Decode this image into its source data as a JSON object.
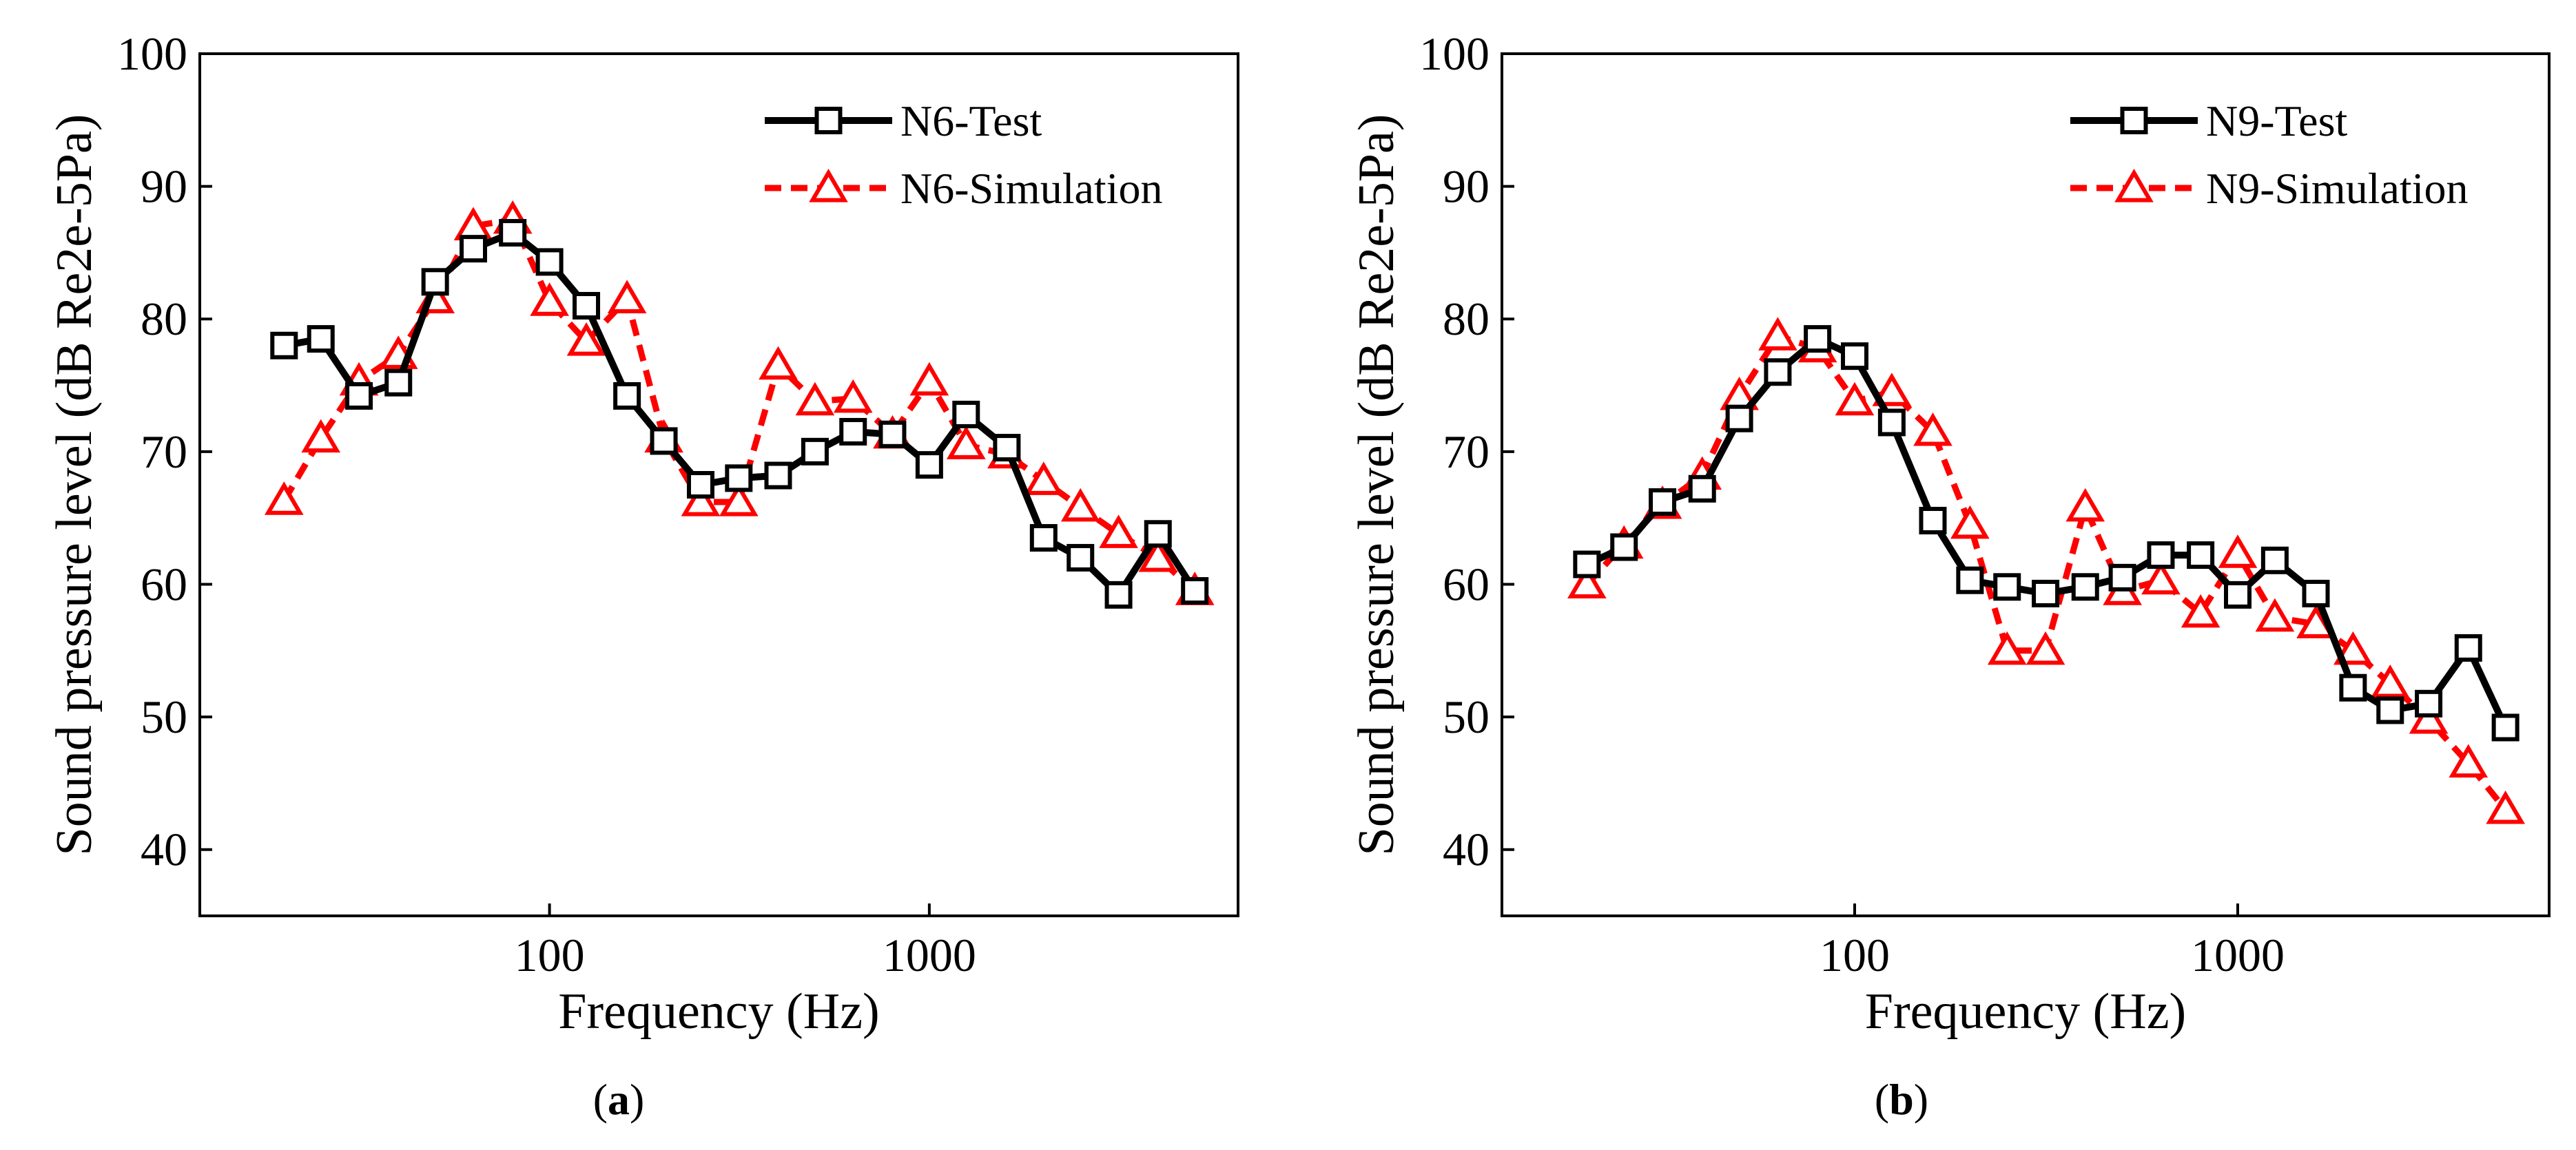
{
  "chart_data": [
    {
      "type": "line",
      "panel_label": "a",
      "xlabel": "Frequency (Hz)",
      "ylabel": "Sound pressure level (dB Re2e-5Pa)",
      "x_scale": "log",
      "xlim": [
        12,
        6500
      ],
      "ylim": [
        35,
        100
      ],
      "x_ticks": [
        100,
        1000
      ],
      "x_tick_labels": [
        "100",
        "1000"
      ],
      "y_ticks": [
        40,
        50,
        60,
        70,
        80,
        90,
        100
      ],
      "y_tick_labels": [
        "40",
        "50",
        "60",
        "70",
        "80",
        "90",
        "100"
      ],
      "legend_position": "top-right",
      "x": [
        20,
        25,
        31.5,
        40,
        50,
        63,
        80,
        100,
        125,
        160,
        200,
        250,
        315,
        400,
        500,
        630,
        800,
        1000,
        1250,
        1600,
        2000,
        2500,
        3150,
        4000,
        5000
      ],
      "series": [
        {
          "name": "N6-Test",
          "color": "#000000",
          "line": "solid",
          "marker": "square",
          "values": [
            78,
            78.5,
            74.2,
            75.2,
            82.8,
            85.3,
            86.5,
            84.3,
            81,
            74.2,
            70.8,
            67.5,
            68,
            68.2,
            70,
            71.5,
            71.3,
            69,
            72.8,
            70.3,
            63.5,
            62,
            59.2,
            63.8,
            59.5
          ]
        },
        {
          "name": "N6-Simulation",
          "color": "#ff0000",
          "line": "dashed",
          "marker": "triangle",
          "values": [
            66.3,
            71,
            75.3,
            77.3,
            81.5,
            87,
            87.5,
            81.3,
            78.3,
            81.5,
            71,
            66.2,
            66.2,
            76.5,
            73.8,
            74,
            71.3,
            75.3,
            70.5,
            69.8,
            67.8,
            65.8,
            63.8,
            62,
            59.5
          ]
        }
      ]
    },
    {
      "type": "line",
      "panel_label": "b",
      "xlabel": "Frequency (Hz)",
      "ylabel": "Sound pressure level (dB Re2e-5Pa)",
      "x_scale": "log",
      "xlim": [
        12,
        6500
      ],
      "ylim": [
        35,
        100
      ],
      "x_ticks": [
        100,
        1000
      ],
      "x_tick_labels": [
        "100",
        "1000"
      ],
      "y_ticks": [
        40,
        50,
        60,
        70,
        80,
        90,
        100
      ],
      "y_tick_labels": [
        "40",
        "50",
        "60",
        "70",
        "80",
        "90",
        "100"
      ],
      "legend_position": "top-right",
      "x": [
        20,
        25,
        31.5,
        40,
        50,
        63,
        80,
        100,
        125,
        160,
        200,
        250,
        315,
        400,
        500,
        630,
        800,
        1000,
        1250,
        1600,
        2000,
        2500,
        3150,
        4000,
        5000
      ],
      "series": [
        {
          "name": "N9-Test",
          "color": "#000000",
          "line": "solid",
          "marker": "square",
          "values": [
            61.5,
            62.8,
            66.2,
            67.2,
            72.5,
            76,
            78.5,
            77.2,
            72.2,
            64.8,
            60.3,
            59.8,
            59.3,
            59.8,
            60.5,
            62.2,
            62.2,
            59.2,
            61.8,
            59.3,
            52.2,
            50.5,
            51,
            55.2,
            49.2
          ]
        },
        {
          "name": "N9-Simulation",
          "color": "#ff0000",
          "line": "dashed",
          "marker": "triangle",
          "values": [
            60,
            63,
            66,
            68.2,
            74.2,
            78.7,
            77.8,
            73.8,
            74.5,
            71.5,
            64.5,
            55,
            55,
            65.8,
            59.5,
            60.3,
            57.8,
            62.3,
            57.5,
            57,
            55,
            52.5,
            49.8,
            46.5,
            43
          ]
        }
      ]
    }
  ]
}
